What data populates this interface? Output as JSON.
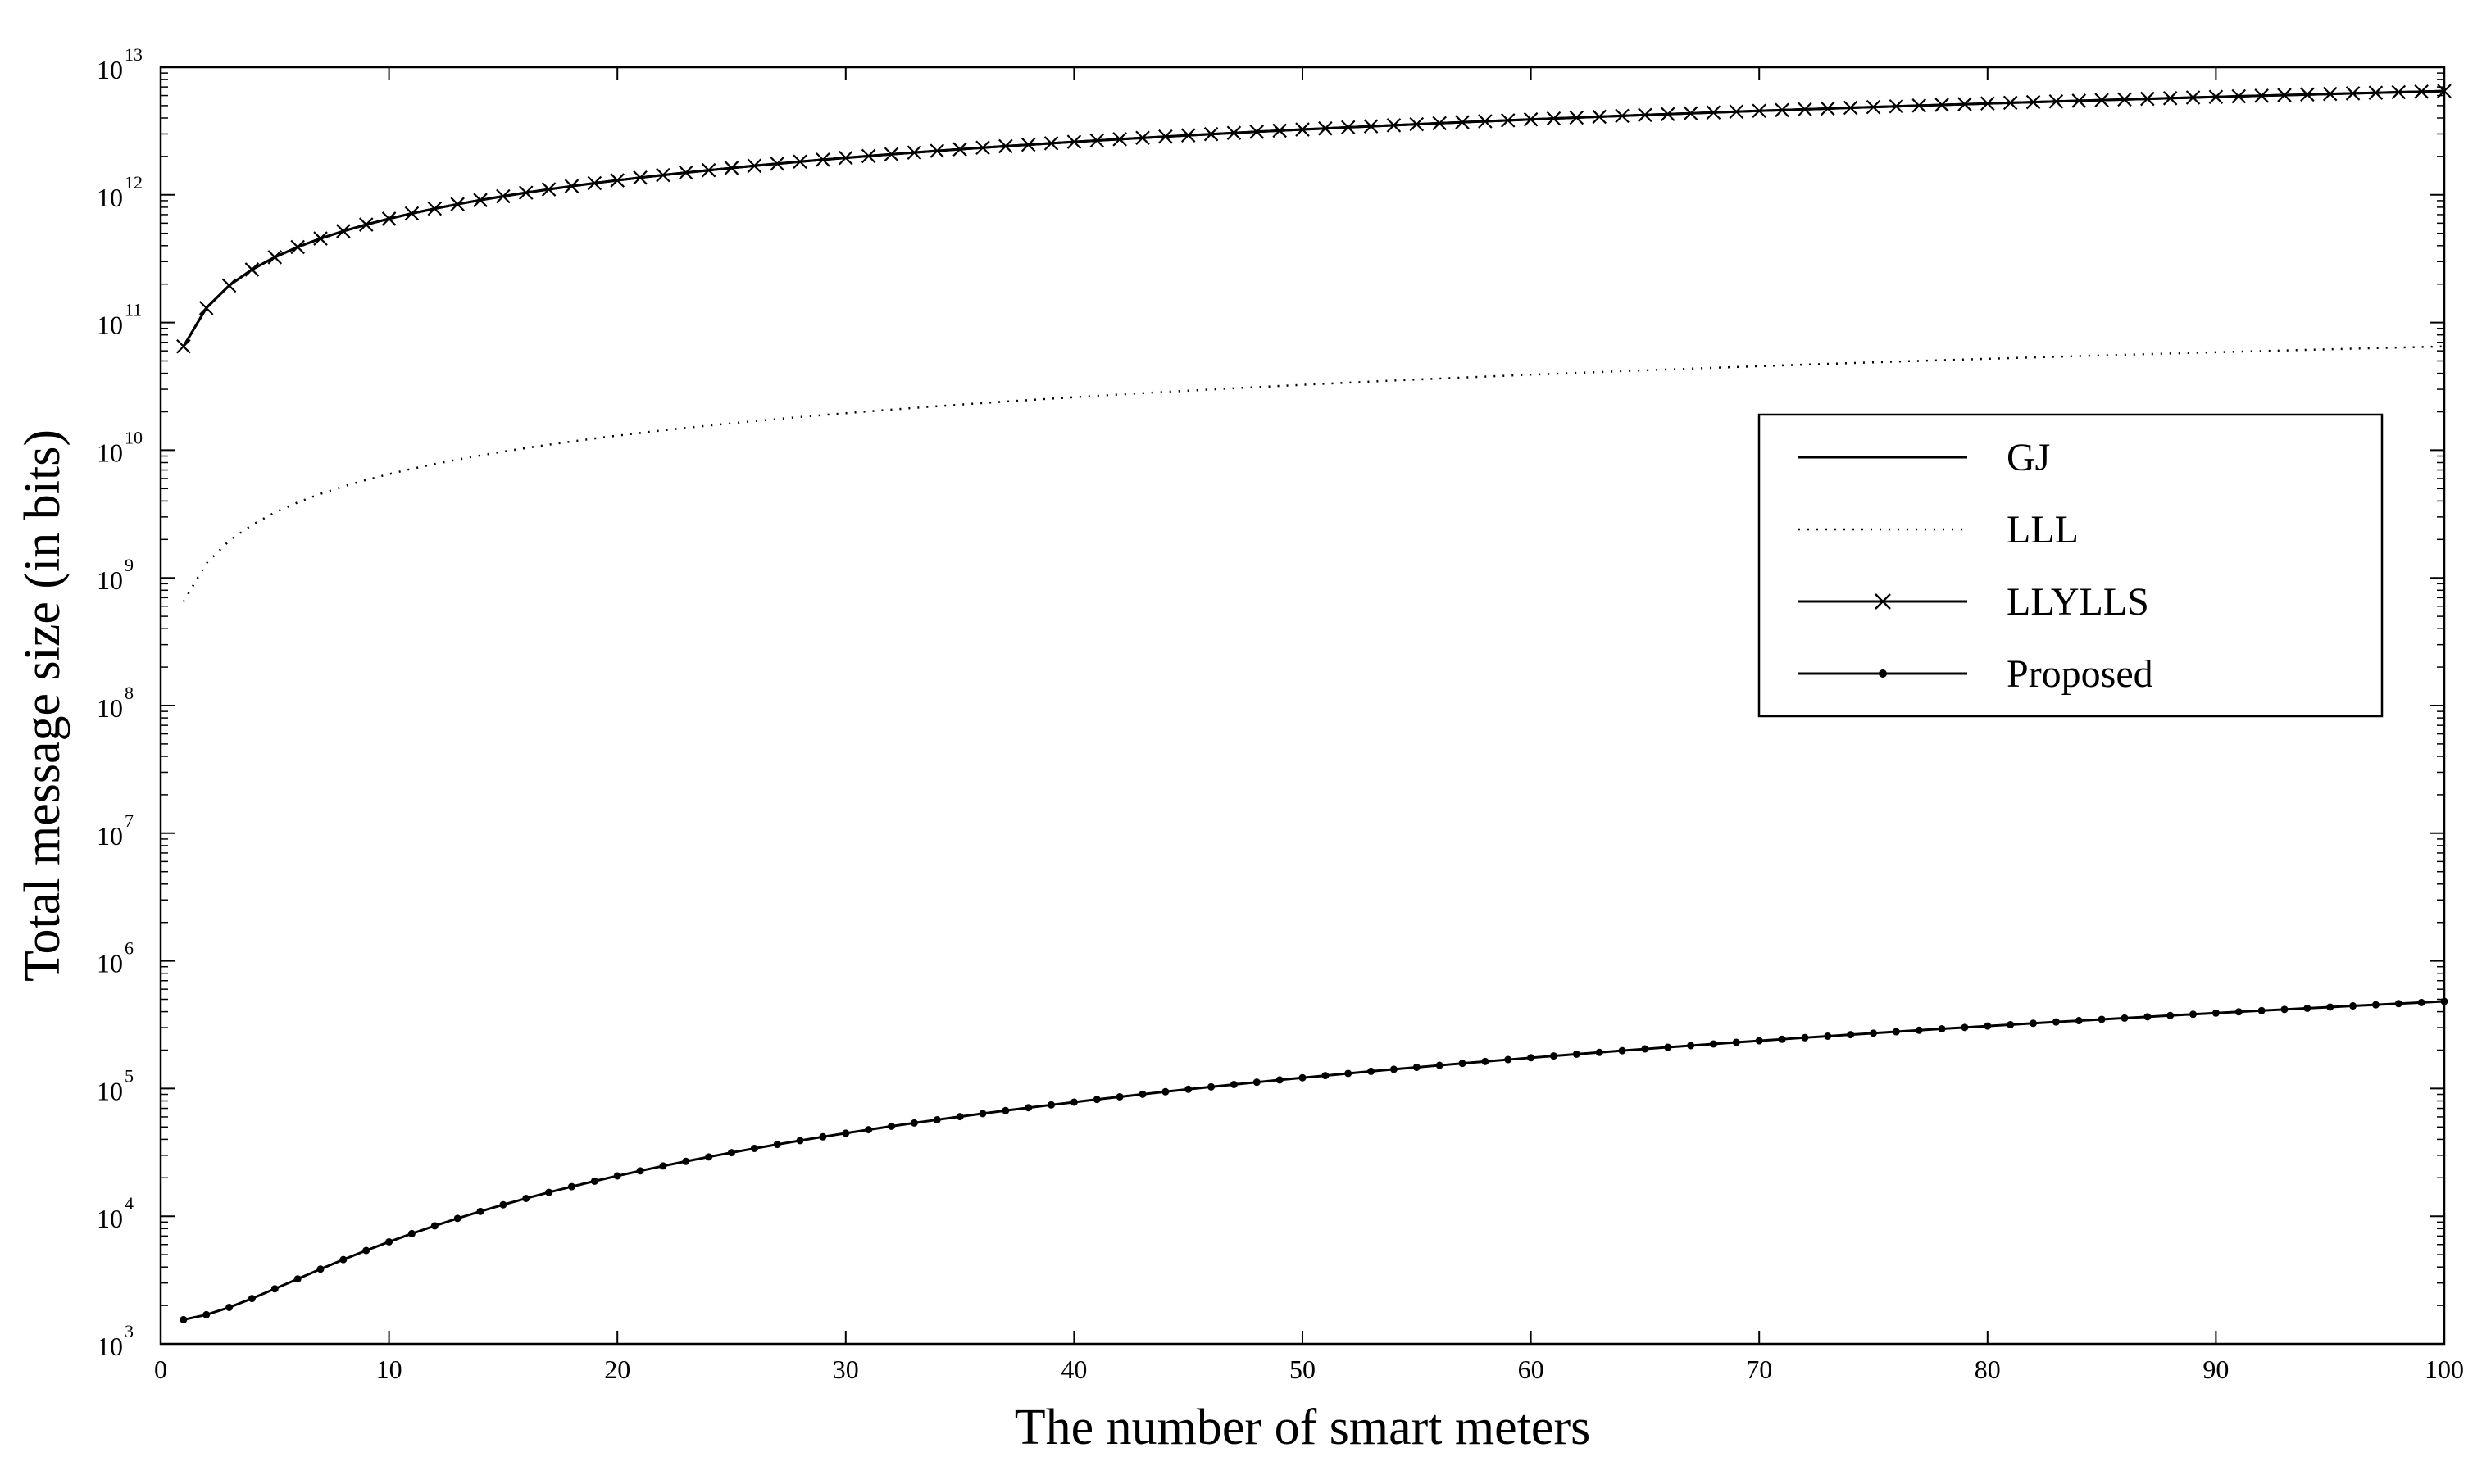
{
  "chart_data": {
    "type": "line",
    "xlabel": "The number of smart meters",
    "ylabel": "Total message size (in bits)",
    "xlim": [
      0,
      100
    ],
    "ylim": [
      1000,
      10000000000000
    ],
    "yscale": "log",
    "x_ticks": [
      0,
      10,
      20,
      30,
      40,
      50,
      60,
      70,
      80,
      90,
      100
    ],
    "y_ticks": [
      {
        "base": "10",
        "exp": "3"
      },
      {
        "base": "10",
        "exp": "4"
      },
      {
        "base": "10",
        "exp": "5"
      },
      {
        "base": "10",
        "exp": "6"
      },
      {
        "base": "10",
        "exp": "7"
      },
      {
        "base": "10",
        "exp": "8"
      },
      {
        "base": "10",
        "exp": "9"
      },
      {
        "base": "10",
        "exp": "10"
      },
      {
        "base": "10",
        "exp": "11"
      },
      {
        "base": "10",
        "exp": "12"
      },
      {
        "base": "10",
        "exp": "13"
      }
    ],
    "grid": false,
    "legend_position": "right",
    "series": [
      {
        "name": "GJ",
        "style": "solid",
        "marker": "none",
        "color": "#000000",
        "x_range": [
          1,
          100
        ],
        "coefficient": 65000000000,
        "exponent": 1
      },
      {
        "name": "LLL",
        "style": "dotted",
        "marker": "none",
        "color": "#000000",
        "x_range": [
          1,
          100
        ],
        "coefficient": 650000000,
        "exponent": 1
      },
      {
        "name": "LLYLLS",
        "style": "solid",
        "marker": "x",
        "color": "#000000",
        "x_range": [
          1,
          100
        ],
        "coefficient": 65000000000,
        "exponent": 1
      },
      {
        "name": "Proposed",
        "style": "solid",
        "marker": "dot",
        "color": "#000000",
        "x_range": [
          1,
          100
        ],
        "coefficient": 48,
        "exponent": 2,
        "offset": 1500
      }
    ]
  }
}
